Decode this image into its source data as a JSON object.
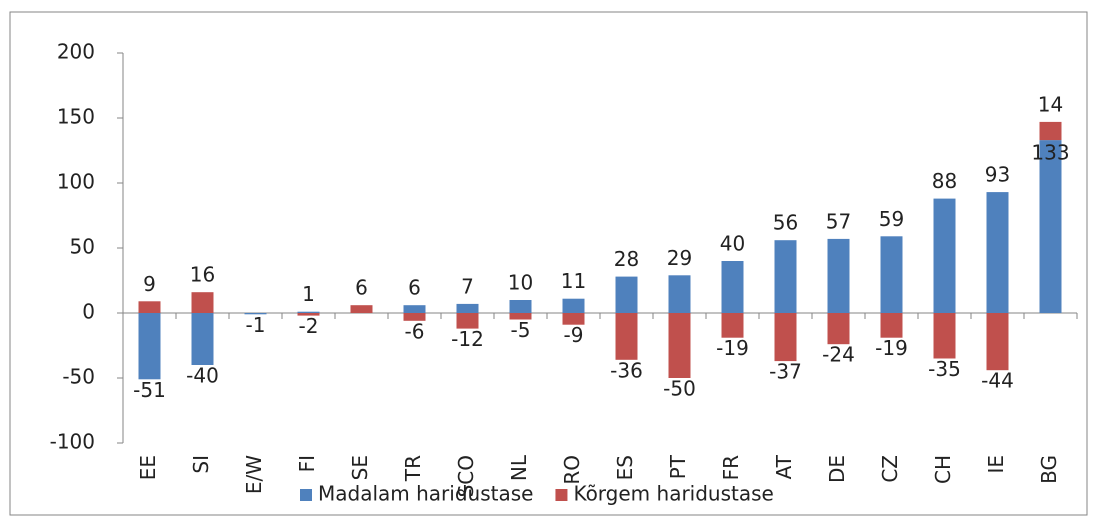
{
  "chart_data": {
    "type": "bar",
    "stacked": true,
    "categories": [
      "EE",
      "SI",
      "E/W",
      "FI",
      "SE",
      "TR",
      "SCO",
      "NL",
      "RO",
      "ES",
      "PT",
      "FR",
      "AT",
      "DE",
      "CZ",
      "CH",
      "IE",
      "BG"
    ],
    "series": [
      {
        "name": "Madalam haridustase",
        "color": "#4f81bd",
        "values": [
          -51,
          -40,
          -1,
          1,
          null,
          6,
          7,
          10,
          11,
          28,
          29,
          40,
          56,
          57,
          59,
          88,
          93,
          133
        ]
      },
      {
        "name": "Kõrgem haridustase",
        "color": "#c0504d",
        "values": [
          9,
          16,
          null,
          -2,
          6,
          -6,
          -12,
          -5,
          -9,
          -36,
          -50,
          -19,
          -37,
          -24,
          -19,
          -35,
          -44,
          14
        ]
      }
    ],
    "ylim": [
      -100,
      200
    ],
    "yticks": [
      -100,
      -50,
      0,
      50,
      100,
      150,
      200
    ],
    "legend": "bottom"
  }
}
